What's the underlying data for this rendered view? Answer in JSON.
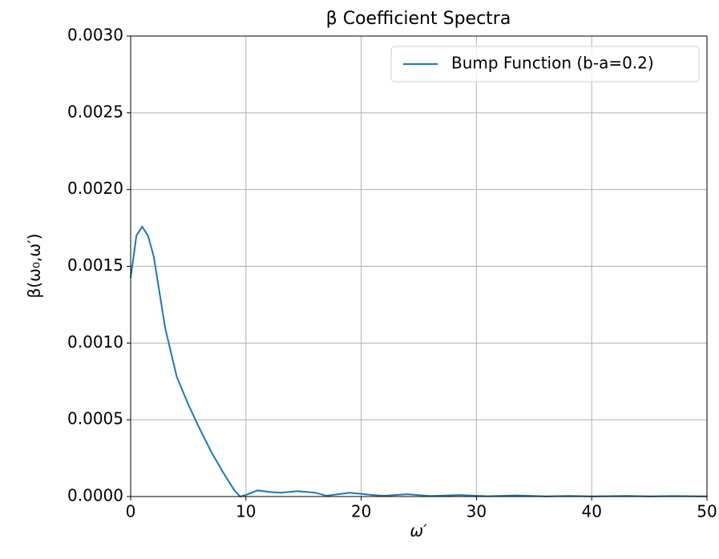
{
  "chart_data": {
    "type": "line",
    "title": "β Coefficient Spectra",
    "x_label": "ω′",
    "y_label": "β(ω₀,ω′)",
    "x": [
      0,
      0.5,
      1,
      1.5,
      2,
      3,
      4,
      5,
      6,
      7,
      8,
      9,
      9.5,
      10,
      11,
      12,
      13,
      14.5,
      16,
      17,
      19,
      21,
      22,
      24,
      26,
      28.5,
      31,
      33.5,
      36,
      38,
      40,
      43,
      45,
      47,
      50
    ],
    "series": [
      {
        "name": "Bump Function (b-a=0.2)",
        "color": "#1f77b4",
        "values": [
          0.001424,
          0.0017,
          0.001758,
          0.0017,
          0.001565,
          0.001096,
          0.00078,
          0.0006,
          0.00044,
          0.00029,
          0.00016,
          4e-05,
          0.0,
          1e-05,
          4e-05,
          3e-05,
          2.5e-05,
          3.5e-05,
          2.5e-05,
          5e-06,
          2.5e-05,
          1e-05,
          5e-06,
          1.5e-05,
          3e-06,
          1e-05,
          2e-06,
          7e-06,
          1e-06,
          4e-06,
          1e-06,
          4e-06,
          1e-06,
          3e-06,
          1e-06
        ]
      }
    ],
    "xlim": [
      0,
      50
    ],
    "xticks": [
      0,
      10,
      20,
      30,
      40,
      50
    ],
    "ylim": [
      0,
      0.003
    ],
    "yticks": [
      {
        "value": 0,
        "label": "0.0000"
      },
      {
        "value": 0.0005,
        "label": "0.0005"
      },
      {
        "value": 0.001,
        "label": "0.0010"
      },
      {
        "value": 0.0015,
        "label": "0.0015"
      },
      {
        "value": 0.002,
        "label": "0.0020"
      },
      {
        "value": 0.0025,
        "label": "0.0025"
      },
      {
        "value": 0.003,
        "label": "0.0030"
      }
    ],
    "grid": true,
    "legend": "upper right"
  }
}
